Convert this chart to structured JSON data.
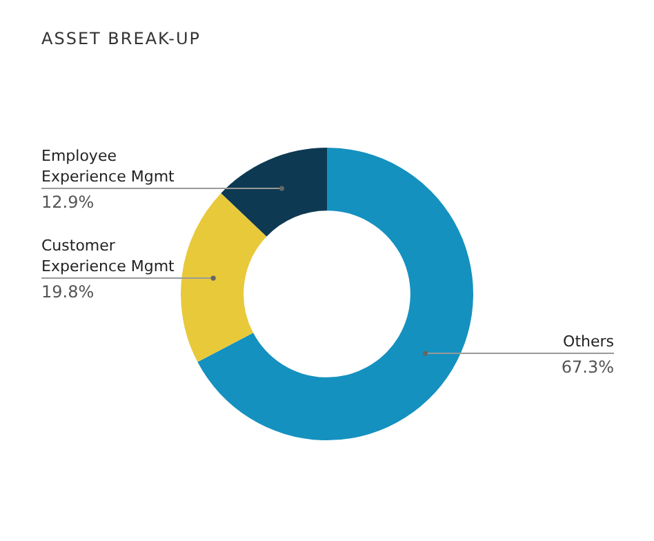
{
  "chart_data": {
    "type": "donut",
    "title": "ASSET BREAK-UP",
    "categories": [
      "Others",
      "Customer Experience Mgmt",
      "Employee Experience Mgmt"
    ],
    "values": [
      67.3,
      19.8,
      12.9
    ],
    "colors": [
      "#1591bf",
      "#e8c93a",
      "#0d3a52"
    ],
    "value_labels": [
      "67.3%",
      "19.8%",
      "12.9%"
    ],
    "legend": false
  }
}
